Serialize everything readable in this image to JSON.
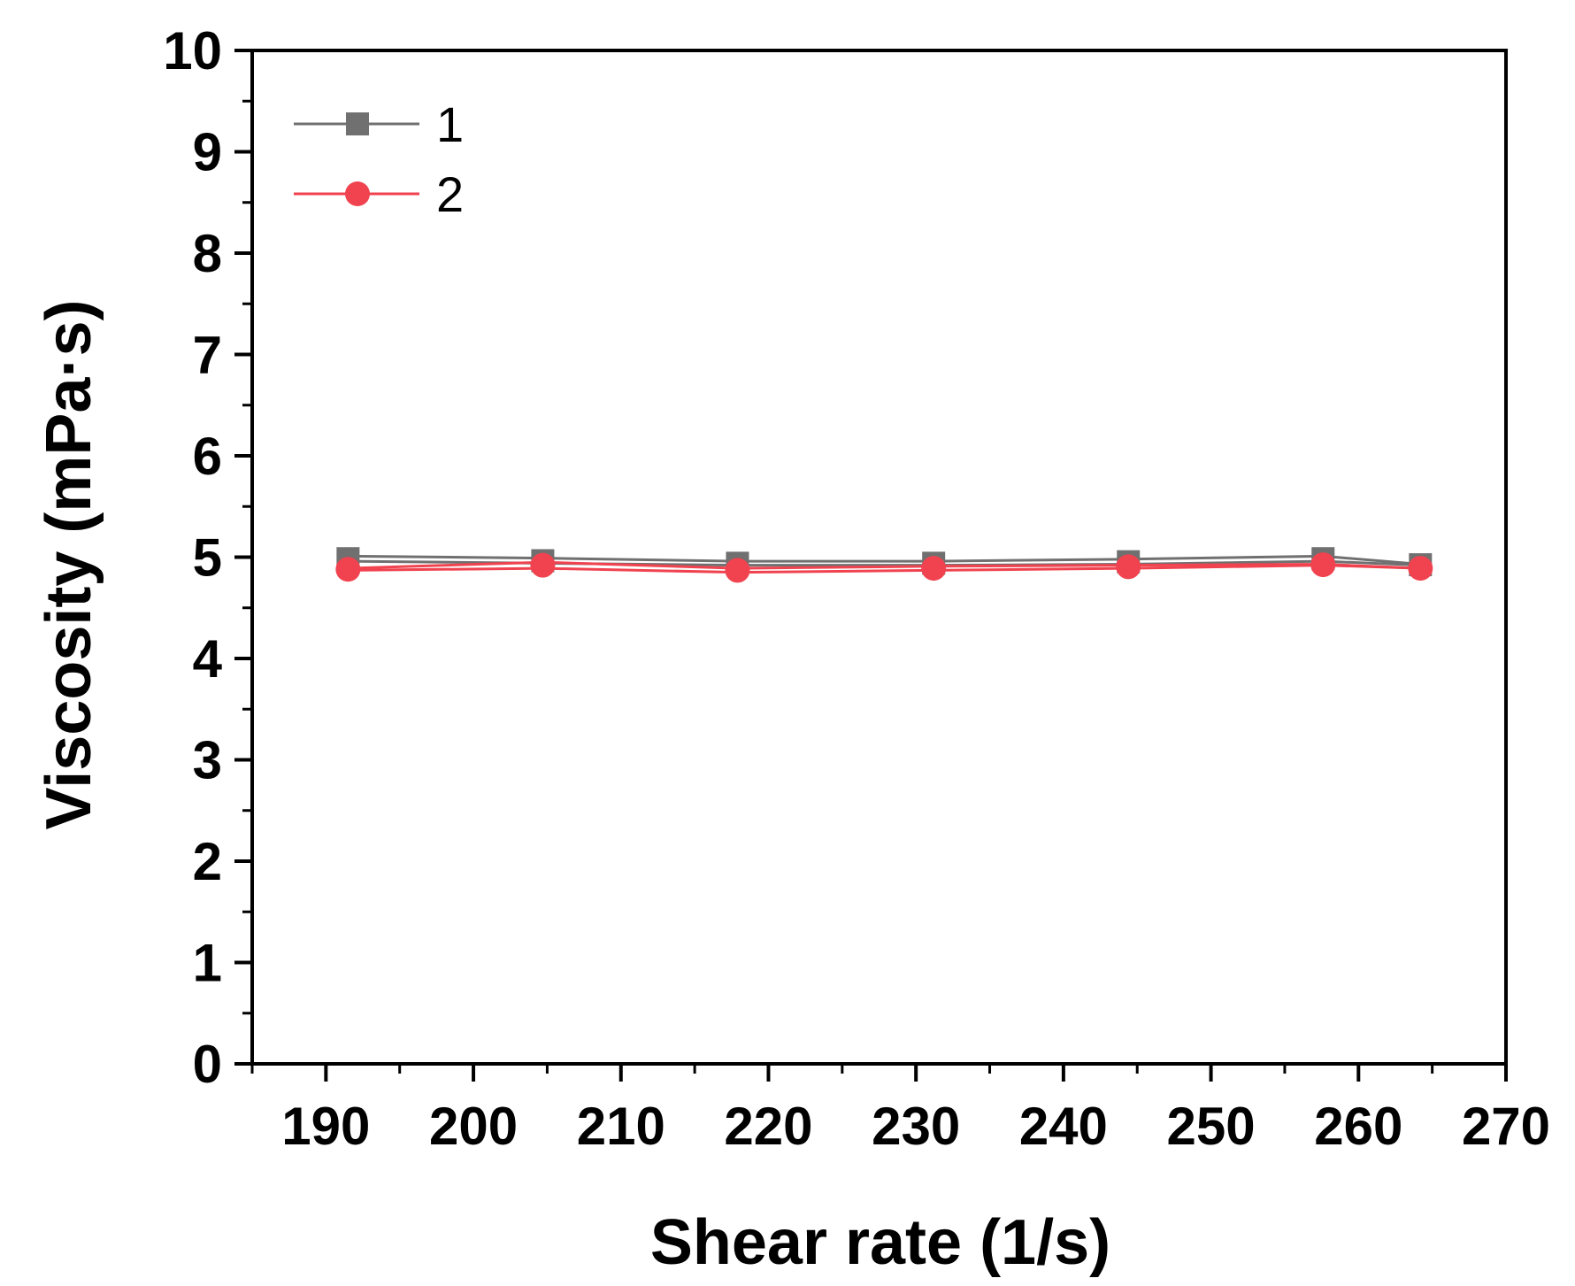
{
  "chart_data": {
    "type": "line",
    "title": "",
    "xlabel": "Shear rate (1/s)",
    "ylabel": "Viscosity (mPa·s)",
    "xlim": [
      185,
      270
    ],
    "ylim": [
      0,
      10
    ],
    "x_ticks": [
      "190",
      "200",
      "210",
      "220",
      "230",
      "240",
      "250",
      "260",
      "270"
    ],
    "y_ticks": [
      "0",
      "1",
      "2",
      "3",
      "4",
      "5",
      "6",
      "7",
      "8",
      "9",
      "10"
    ],
    "grid": false,
    "legend": "top-left",
    "x": [
      191.5,
      204.7,
      217.9,
      231.2,
      244.4,
      257.6,
      264.2
    ],
    "series": [
      {
        "name": "1",
        "marker": "square",
        "color": "#707070",
        "values": [
          5.01,
          4.99,
          4.96,
          4.96,
          4.98,
          5.01,
          4.93
        ],
        "values_2": [
          4.96,
          4.94,
          4.92,
          4.92,
          4.93,
          4.96,
          4.92
        ]
      },
      {
        "name": "2",
        "marker": "circle",
        "color": "#f0434f",
        "values": [
          4.87,
          4.89,
          4.85,
          4.87,
          4.89,
          4.92,
          4.89
        ],
        "values_2": [
          4.89,
          4.95,
          4.89,
          4.91,
          4.92,
          4.93,
          4.89
        ]
      }
    ]
  }
}
